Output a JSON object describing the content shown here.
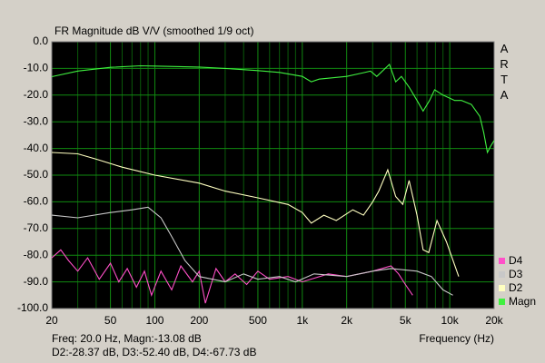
{
  "chart_data": {
    "type": "line",
    "title": "FR Magnitude dB V/V (smoothed 1/9 oct)",
    "watermark": "ARTA",
    "x_label": "Frequency (Hz)",
    "cursor_readout": [
      "Freq: 20.0 Hz, Magn:-13.08 dB",
      "D2:-28.37 dB, D3:-52.40 dB, D4:-67.73 dB"
    ],
    "x_scale": "log",
    "xlim": [
      20,
      20000
    ],
    "xticks": [
      20,
      50,
      100,
      200,
      500,
      {
        "value": 1000,
        "label": "1k"
      },
      {
        "value": 2000,
        "label": "2k"
      },
      {
        "value": 5000,
        "label": "5k"
      },
      {
        "value": 10000,
        "label": "10k"
      },
      {
        "value": 20000,
        "label": "20k"
      }
    ],
    "x_minor_grid": [
      30,
      40,
      60,
      70,
      80,
      90,
      300,
      400,
      600,
      700,
      800,
      900,
      3000,
      4000,
      6000,
      7000,
      8000,
      9000
    ],
    "ylim": [
      -100,
      0
    ],
    "yticks": [
      {
        "value": 0,
        "label": "0.0"
      },
      {
        "value": -10,
        "label": "-10.0"
      },
      {
        "value": -20,
        "label": "-20.0"
      },
      {
        "value": -30,
        "label": "-30.0"
      },
      {
        "value": -40,
        "label": "-40.0"
      },
      {
        "value": -50,
        "label": "-50.0"
      },
      {
        "value": -60,
        "label": "-60.0"
      },
      {
        "value": -70,
        "label": "-70.0"
      },
      {
        "value": -80,
        "label": "-80.0"
      },
      {
        "value": -90,
        "label": "-90.0"
      },
      {
        "value": -100,
        "label": "-100.0"
      }
    ],
    "grid": true,
    "legend": "bottom-right",
    "series": [
      {
        "name": "D4",
        "color": "#ff50c8",
        "x": [
          20,
          23,
          26,
          30,
          35,
          42,
          50,
          57,
          65,
          75,
          85,
          95,
          110,
          130,
          150,
          180,
          200,
          220,
          260,
          300,
          350,
          420,
          500,
          600,
          800,
          1000,
          1500,
          2000,
          3000,
          4000,
          4500,
          5000,
          5600
        ],
        "values": [
          -81,
          -78,
          -82,
          -86,
          -81,
          -89,
          -83,
          -90,
          -85,
          -92,
          -86,
          -95,
          -86,
          -93,
          -84,
          -90,
          -86,
          -98,
          -85,
          -90,
          -87,
          -91,
          -86,
          -89,
          -88,
          -90,
          -87,
          -88,
          -86,
          -84,
          -87,
          -91,
          -95
        ]
      },
      {
        "name": "D3",
        "color": "#c8c8c8",
        "x": [
          20,
          30,
          50,
          70,
          90,
          110,
          130,
          160,
          200,
          300,
          400,
          500,
          700,
          900,
          1200,
          2000,
          3000,
          4000,
          6000,
          7500,
          9000,
          10500
        ],
        "values": [
          -65,
          -66,
          -64,
          -63,
          -62,
          -66,
          -73,
          -82,
          -88,
          -90,
          -87,
          -89,
          -88,
          -90,
          -87,
          -88,
          -86,
          -85,
          -86,
          -88,
          -93,
          -95
        ]
      },
      {
        "name": "D2",
        "color": "#ffffc0",
        "x": [
          20,
          30,
          40,
          60,
          100,
          200,
          300,
          500,
          800,
          1000,
          1150,
          1400,
          1700,
          2200,
          2600,
          3000,
          3300,
          3800,
          4300,
          4800,
          5300,
          6000,
          6600,
          7200,
          8200,
          9500,
          11000,
          11500
        ],
        "values": [
          -41.5,
          -42,
          -44,
          -47,
          -50,
          -53,
          -56,
          -58.5,
          -61,
          -64,
          -68,
          -65,
          -67,
          -63,
          -65,
          -60,
          -56,
          -48,
          -58,
          -61,
          -52,
          -65,
          -78,
          -79,
          -67,
          -75,
          -85,
          -88
        ]
      },
      {
        "name": "Magn",
        "color": "#40f040",
        "x": [
          20,
          30,
          50,
          80,
          100,
          200,
          300,
          500,
          700,
          1000,
          1150,
          1300,
          2000,
          2600,
          2900,
          3200,
          3900,
          4300,
          4700,
          5300,
          6000,
          6600,
          7300,
          7900,
          9000,
          10800,
          12000,
          14000,
          16000,
          17000,
          18000,
          19000,
          20000
        ],
        "values": [
          -13.1,
          -11,
          -9.6,
          -9,
          -9.1,
          -9.5,
          -10,
          -10.8,
          -11.5,
          -13,
          -15,
          -14,
          -13,
          -11.6,
          -11,
          -13,
          -8.5,
          -15,
          -13,
          -17,
          -22,
          -26,
          -22,
          -18,
          -20,
          -22,
          -22,
          -23.5,
          -28,
          -34,
          -41.5,
          -39,
          -37
        ]
      }
    ]
  }
}
